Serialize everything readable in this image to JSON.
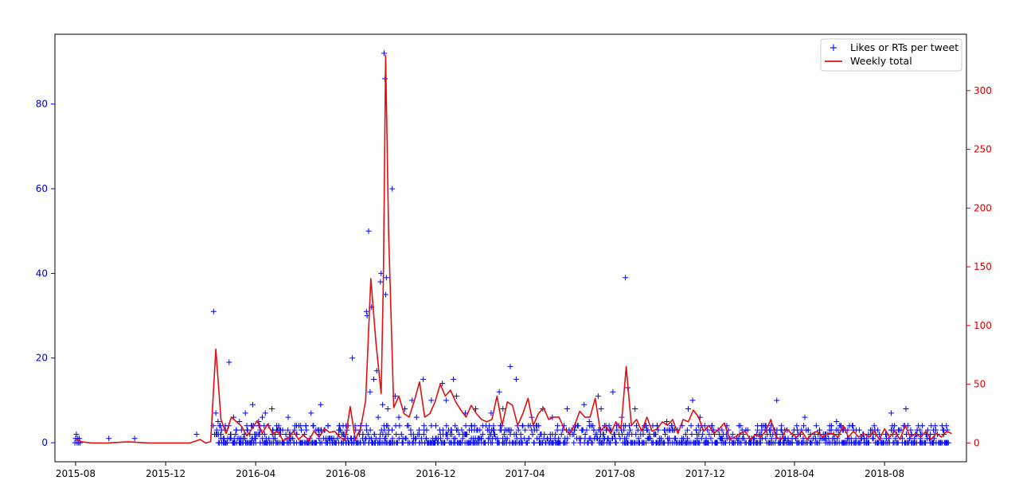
{
  "colors": {
    "left_axis": "#0000cc",
    "right_axis": "#dd0000",
    "scatter": "#0000ff",
    "line": "#e01010",
    "frame": "#000000"
  },
  "chart_data": {
    "type": "line",
    "title": "",
    "xlabel": "",
    "ylabel_left": "",
    "ylabel_right": "",
    "grid": false,
    "legend_position": "top-right",
    "x_axis": {
      "type": "date",
      "range": [
        "2015-07-04",
        "2018-11-20"
      ],
      "ticks": [
        "2015-08",
        "2015-12",
        "2016-04",
        "2016-08",
        "2016-12",
        "2017-04",
        "2017-08",
        "2017-12",
        "2018-04",
        "2018-08"
      ]
    },
    "y_left": {
      "range": [
        -4.5,
        96.5
      ],
      "ticks": [
        0,
        20,
        40,
        60,
        80
      ]
    },
    "y_right": {
      "range": [
        -16,
        348
      ],
      "ticks": [
        0,
        50,
        100,
        150,
        200,
        250,
        300
      ]
    },
    "series": [
      {
        "name": "Likes or RTs per tweet",
        "kind": "scatter",
        "axis": "left",
        "marker": "+",
        "points": [
          [
            "2015-07-31",
            0
          ],
          [
            "2015-08-01",
            1
          ],
          [
            "2015-08-02",
            2
          ],
          [
            "2015-08-03",
            0
          ],
          [
            "2015-08-04",
            1
          ],
          [
            "2015-08-05",
            0
          ],
          [
            "2015-08-06",
            1
          ],
          [
            "2015-08-07",
            0
          ],
          [
            "2015-09-15",
            1
          ],
          [
            "2015-10-20",
            1
          ],
          [
            "2016-01-12",
            2
          ],
          [
            "2016-02-04",
            31
          ],
          [
            "2016-02-07",
            7
          ],
          [
            "2016-02-10",
            5
          ],
          [
            "2016-02-14",
            2
          ],
          [
            "2016-02-20",
            3
          ],
          [
            "2016-02-25",
            19
          ],
          [
            "2016-03-02",
            6
          ],
          [
            "2016-03-10",
            5
          ],
          [
            "2016-03-18",
            7
          ],
          [
            "2016-03-28",
            9
          ],
          [
            "2016-04-05",
            5
          ],
          [
            "2016-04-10",
            6
          ],
          [
            "2016-04-14",
            7
          ],
          [
            "2016-04-23",
            8
          ],
          [
            "2016-05-15",
            6
          ],
          [
            "2016-06-01",
            4
          ],
          [
            "2016-06-15",
            7
          ],
          [
            "2016-06-28",
            9
          ],
          [
            "2016-07-08",
            4
          ],
          [
            "2016-07-25",
            3
          ],
          [
            "2016-08-10",
            20
          ],
          [
            "2016-08-29",
            31
          ],
          [
            "2016-08-30",
            30
          ],
          [
            "2016-09-01",
            50
          ],
          [
            "2016-09-03",
            12
          ],
          [
            "2016-09-05",
            32
          ],
          [
            "2016-09-08",
            15
          ],
          [
            "2016-09-12",
            17
          ],
          [
            "2016-09-14",
            6
          ],
          [
            "2016-09-17",
            38
          ],
          [
            "2016-09-18",
            40
          ],
          [
            "2016-09-20",
            9
          ],
          [
            "2016-09-22",
            92
          ],
          [
            "2016-09-23",
            86
          ],
          [
            "2016-09-24",
            35
          ],
          [
            "2016-09-25",
            39
          ],
          [
            "2016-09-27",
            8
          ],
          [
            "2016-10-03",
            60
          ],
          [
            "2016-10-07",
            11
          ],
          [
            "2016-10-12",
            6
          ],
          [
            "2016-10-20",
            8
          ],
          [
            "2016-10-30",
            10
          ],
          [
            "2016-11-05",
            6
          ],
          [
            "2016-11-14",
            15
          ],
          [
            "2016-11-25",
            10
          ],
          [
            "2016-12-10",
            14
          ],
          [
            "2016-12-15",
            10
          ],
          [
            "2016-12-25",
            15
          ],
          [
            "2016-12-29",
            11
          ],
          [
            "2017-01-10",
            7
          ],
          [
            "2017-01-24",
            8
          ],
          [
            "2017-02-14",
            7
          ],
          [
            "2017-02-25",
            12
          ],
          [
            "2017-03-02",
            8
          ],
          [
            "2017-03-12",
            18
          ],
          [
            "2017-03-20",
            15
          ],
          [
            "2017-03-29",
            4
          ],
          [
            "2017-04-10",
            6
          ],
          [
            "2017-04-25",
            8
          ],
          [
            "2017-05-08",
            6
          ],
          [
            "2017-05-28",
            8
          ],
          [
            "2017-06-20",
            9
          ],
          [
            "2017-06-27",
            5
          ],
          [
            "2017-07-09",
            11
          ],
          [
            "2017-07-13",
            8
          ],
          [
            "2017-07-29",
            12
          ],
          [
            "2017-08-10",
            6
          ],
          [
            "2017-08-15",
            39
          ],
          [
            "2017-08-18",
            13
          ],
          [
            "2017-08-28",
            8
          ],
          [
            "2017-09-12",
            4
          ],
          [
            "2017-10-10",
            5
          ],
          [
            "2017-11-08",
            8
          ],
          [
            "2017-11-14",
            10
          ],
          [
            "2017-11-24",
            6
          ],
          [
            "2017-12-10",
            3
          ],
          [
            "2018-01-20",
            3
          ],
          [
            "2018-02-10",
            4
          ],
          [
            "2018-02-26",
            3
          ],
          [
            "2018-03-08",
            10
          ],
          [
            "2018-04-05",
            3
          ],
          [
            "2018-04-15",
            6
          ],
          [
            "2018-05-05",
            3
          ],
          [
            "2018-05-28",
            5
          ],
          [
            "2018-06-20",
            3
          ],
          [
            "2018-07-15",
            3
          ],
          [
            "2018-08-10",
            7
          ],
          [
            "2018-08-20",
            3
          ],
          [
            "2018-08-30",
            8
          ],
          [
            "2018-09-14",
            2
          ],
          [
            "2018-10-02",
            2
          ],
          [
            "2018-10-18",
            4
          ],
          [
            "2018-10-25",
            3
          ]
        ]
      },
      {
        "name": "Weekly total",
        "kind": "line",
        "axis": "right",
        "points": [
          [
            "2015-08-02",
            3
          ],
          [
            "2015-08-09",
            1
          ],
          [
            "2015-08-23",
            0
          ],
          [
            "2015-09-13",
            0
          ],
          [
            "2015-10-11",
            1
          ],
          [
            "2015-11-08",
            0
          ],
          [
            "2015-12-06",
            0
          ],
          [
            "2016-01-03",
            0
          ],
          [
            "2016-01-17",
            3
          ],
          [
            "2016-01-24",
            0
          ],
          [
            "2016-01-31",
            1
          ],
          [
            "2016-02-07",
            80
          ],
          [
            "2016-02-14",
            20
          ],
          [
            "2016-02-21",
            8
          ],
          [
            "2016-02-28",
            22
          ],
          [
            "2016-03-06",
            18
          ],
          [
            "2016-03-13",
            14
          ],
          [
            "2016-03-20",
            6
          ],
          [
            "2016-03-27",
            12
          ],
          [
            "2016-04-03",
            19
          ],
          [
            "2016-04-10",
            8
          ],
          [
            "2016-04-17",
            16
          ],
          [
            "2016-04-24",
            8
          ],
          [
            "2016-05-01",
            10
          ],
          [
            "2016-05-08",
            2
          ],
          [
            "2016-05-15",
            4
          ],
          [
            "2016-05-22",
            10
          ],
          [
            "2016-05-29",
            3
          ],
          [
            "2016-06-05",
            7
          ],
          [
            "2016-06-12",
            2
          ],
          [
            "2016-06-19",
            10
          ],
          [
            "2016-06-26",
            5
          ],
          [
            "2016-07-03",
            12
          ],
          [
            "2016-07-10",
            9
          ],
          [
            "2016-07-17",
            10
          ],
          [
            "2016-07-24",
            5
          ],
          [
            "2016-07-31",
            2
          ],
          [
            "2016-08-07",
            31
          ],
          [
            "2016-08-14",
            3
          ],
          [
            "2016-08-21",
            12
          ],
          [
            "2016-08-28",
            36
          ],
          [
            "2016-09-04",
            140
          ],
          [
            "2016-09-11",
            85
          ],
          [
            "2016-09-18",
            42
          ],
          [
            "2016-09-21",
            140
          ],
          [
            "2016-09-24",
            330
          ],
          [
            "2016-09-28",
            180
          ],
          [
            "2016-10-05",
            30
          ],
          [
            "2016-10-12",
            40
          ],
          [
            "2016-10-19",
            25
          ],
          [
            "2016-10-26",
            22
          ],
          [
            "2016-11-02",
            36
          ],
          [
            "2016-11-09",
            52
          ],
          [
            "2016-11-16",
            22
          ],
          [
            "2016-11-23",
            25
          ],
          [
            "2016-11-30",
            35
          ],
          [
            "2016-12-07",
            50
          ],
          [
            "2016-12-14",
            40
          ],
          [
            "2016-12-21",
            45
          ],
          [
            "2016-12-28",
            35
          ],
          [
            "2017-01-04",
            28
          ],
          [
            "2017-01-11",
            22
          ],
          [
            "2017-01-18",
            32
          ],
          [
            "2017-01-25",
            25
          ],
          [
            "2017-02-01",
            20
          ],
          [
            "2017-02-08",
            18
          ],
          [
            "2017-02-15",
            20
          ],
          [
            "2017-02-22",
            40
          ],
          [
            "2017-03-01",
            15
          ],
          [
            "2017-03-08",
            35
          ],
          [
            "2017-03-15",
            32
          ],
          [
            "2017-03-22",
            15
          ],
          [
            "2017-03-29",
            25
          ],
          [
            "2017-04-05",
            38
          ],
          [
            "2017-04-12",
            15
          ],
          [
            "2017-04-19",
            25
          ],
          [
            "2017-04-26",
            30
          ],
          [
            "2017-05-03",
            20
          ],
          [
            "2017-05-10",
            22
          ],
          [
            "2017-05-17",
            22
          ],
          [
            "2017-05-24",
            12
          ],
          [
            "2017-05-31",
            8
          ],
          [
            "2017-06-07",
            15
          ],
          [
            "2017-06-14",
            27
          ],
          [
            "2017-06-21",
            22
          ],
          [
            "2017-06-28",
            22
          ],
          [
            "2017-07-05",
            38
          ],
          [
            "2017-07-12",
            10
          ],
          [
            "2017-07-19",
            15
          ],
          [
            "2017-07-26",
            8
          ],
          [
            "2017-08-02",
            18
          ],
          [
            "2017-08-09",
            12
          ],
          [
            "2017-08-16",
            65
          ],
          [
            "2017-08-23",
            15
          ],
          [
            "2017-08-30",
            20
          ],
          [
            "2017-09-06",
            10
          ],
          [
            "2017-09-13",
            22
          ],
          [
            "2017-09-20",
            10
          ],
          [
            "2017-09-27",
            12
          ],
          [
            "2017-10-04",
            18
          ],
          [
            "2017-10-11",
            15
          ],
          [
            "2017-10-18",
            20
          ],
          [
            "2017-10-25",
            8
          ],
          [
            "2017-11-01",
            20
          ],
          [
            "2017-11-08",
            18
          ],
          [
            "2017-11-15",
            28
          ],
          [
            "2017-11-22",
            22
          ],
          [
            "2017-11-29",
            10
          ],
          [
            "2017-12-06",
            15
          ],
          [
            "2017-12-13",
            8
          ],
          [
            "2017-12-20",
            12
          ],
          [
            "2017-12-27",
            17
          ],
          [
            "2018-01-03",
            3
          ],
          [
            "2018-01-10",
            5
          ],
          [
            "2018-01-17",
            8
          ],
          [
            "2018-01-24",
            10
          ],
          [
            "2018-01-31",
            3
          ],
          [
            "2018-02-07",
            7
          ],
          [
            "2018-02-14",
            5
          ],
          [
            "2018-02-21",
            10
          ],
          [
            "2018-02-28",
            20
          ],
          [
            "2018-03-07",
            5
          ],
          [
            "2018-03-14",
            3
          ],
          [
            "2018-03-21",
            12
          ],
          [
            "2018-03-28",
            8
          ],
          [
            "2018-04-04",
            5
          ],
          [
            "2018-04-11",
            10
          ],
          [
            "2018-04-18",
            3
          ],
          [
            "2018-04-25",
            8
          ],
          [
            "2018-05-02",
            10
          ],
          [
            "2018-05-09",
            5
          ],
          [
            "2018-05-16",
            8
          ],
          [
            "2018-05-23",
            8
          ],
          [
            "2018-05-30",
            5
          ],
          [
            "2018-06-06",
            15
          ],
          [
            "2018-06-13",
            5
          ],
          [
            "2018-06-20",
            10
          ],
          [
            "2018-06-27",
            5
          ],
          [
            "2018-07-04",
            8
          ],
          [
            "2018-07-11",
            5
          ],
          [
            "2018-07-18",
            10
          ],
          [
            "2018-07-25",
            3
          ],
          [
            "2018-08-01",
            12
          ],
          [
            "2018-08-08",
            5
          ],
          [
            "2018-08-15",
            10
          ],
          [
            "2018-08-22",
            3
          ],
          [
            "2018-08-29",
            15
          ],
          [
            "2018-09-05",
            5
          ],
          [
            "2018-09-12",
            8
          ],
          [
            "2018-09-19",
            5
          ],
          [
            "2018-09-26",
            10
          ],
          [
            "2018-10-03",
            3
          ],
          [
            "2018-10-10",
            8
          ],
          [
            "2018-10-17",
            5
          ],
          [
            "2018-10-24",
            10
          ],
          [
            "2018-10-31",
            8
          ]
        ]
      }
    ]
  }
}
